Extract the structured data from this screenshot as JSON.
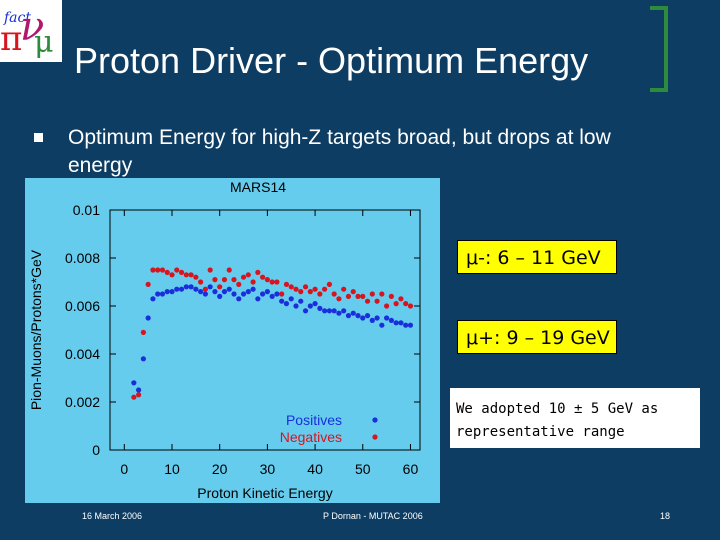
{
  "slide": {
    "title": "Proton Driver - Optimum Energy",
    "bullet": "Optimum Energy for high-Z targets broad, but drops at low energy",
    "logo_text": "fact",
    "label_muminus": "μ-: 6 – 11 GeV",
    "label_muplus": "μ+: 9 – 19 GeV",
    "note": "We adopted 10 ± 5 GeV as representative range",
    "footer_date": "16 March 2006",
    "footer_author": "P Dornan - MUTAC 2006",
    "page_number": "18"
  },
  "colors": {
    "background": "#0e3d63",
    "accent_green": "#2e8b3c",
    "plot_bg": "#66ccee",
    "positives": "#1a2edc",
    "negatives": "#d8141e",
    "label_box": "#ffff00"
  },
  "chart_data": {
    "type": "scatter",
    "title": "MARS14",
    "xlabel": "Proton Kinetic Energy",
    "ylabel": "Pion-Muons/Protons*GeV",
    "xlim": [
      -3,
      62
    ],
    "ylim": [
      0,
      0.01
    ],
    "x_ticks": [
      0,
      10,
      20,
      30,
      40,
      50,
      60
    ],
    "y_ticks": [
      0,
      0.002,
      0.004,
      0.006,
      0.008,
      0.01
    ],
    "y_tick_labels": [
      "0",
      "0.002",
      "0.004",
      "0.006",
      "0.008",
      "0.01"
    ],
    "series": [
      {
        "name": "Positives",
        "color": "#1a2edc",
        "x": [
          2,
          3,
          4,
          5,
          6,
          7,
          8,
          9,
          10,
          11,
          12,
          13,
          14,
          15,
          16,
          17,
          18,
          19,
          20,
          21,
          22,
          23,
          24,
          25,
          26,
          27,
          28,
          29,
          30,
          31,
          32,
          33,
          34,
          35,
          36,
          37,
          38,
          39,
          40,
          41,
          42,
          43,
          44,
          45,
          46,
          47,
          48,
          49,
          50,
          51,
          52,
          53,
          54,
          55,
          56,
          57,
          58,
          59,
          60
        ],
        "y": [
          0.0028,
          0.0025,
          0.0038,
          0.0055,
          0.0063,
          0.0065,
          0.0065,
          0.0066,
          0.0066,
          0.0067,
          0.0067,
          0.0068,
          0.0068,
          0.0067,
          0.0066,
          0.0065,
          0.0068,
          0.0066,
          0.0064,
          0.0066,
          0.0067,
          0.0065,
          0.0063,
          0.0065,
          0.0066,
          0.0067,
          0.0063,
          0.0065,
          0.0066,
          0.0064,
          0.0065,
          0.0062,
          0.0061,
          0.0063,
          0.006,
          0.0062,
          0.0058,
          0.006,
          0.0061,
          0.0059,
          0.0058,
          0.0058,
          0.0058,
          0.0057,
          0.0058,
          0.0056,
          0.0057,
          0.0056,
          0.0055,
          0.0056,
          0.0054,
          0.0055,
          0.0052,
          0.0055,
          0.0054,
          0.0053,
          0.0053,
          0.0052,
          0.0052
        ]
      },
      {
        "name": "Negatives",
        "color": "#d8141e",
        "x": [
          2,
          3,
          4,
          5,
          6,
          7,
          8,
          9,
          10,
          11,
          12,
          13,
          14,
          15,
          16,
          17,
          18,
          19,
          20,
          21,
          22,
          23,
          24,
          25,
          26,
          27,
          28,
          29,
          30,
          31,
          32,
          33,
          34,
          35,
          36,
          37,
          38,
          39,
          40,
          41,
          42,
          43,
          44,
          45,
          46,
          47,
          48,
          49,
          50,
          51,
          52,
          53,
          54,
          55,
          56,
          57,
          58,
          59,
          60
        ],
        "y": [
          0.0022,
          0.0023,
          0.0049,
          0.0069,
          0.0075,
          0.0075,
          0.0075,
          0.0074,
          0.0073,
          0.0075,
          0.0074,
          0.0073,
          0.0073,
          0.0072,
          0.007,
          0.0067,
          0.0075,
          0.0071,
          0.0068,
          0.0071,
          0.0075,
          0.0071,
          0.0069,
          0.0072,
          0.0073,
          0.007,
          0.0074,
          0.0072,
          0.0071,
          0.007,
          0.007,
          0.0065,
          0.0069,
          0.0068,
          0.0067,
          0.0066,
          0.0068,
          0.0066,
          0.0067,
          0.0065,
          0.0067,
          0.0069,
          0.0065,
          0.0063,
          0.0067,
          0.0064,
          0.0066,
          0.0064,
          0.0064,
          0.0062,
          0.0065,
          0.0062,
          0.0065,
          0.006,
          0.0064,
          0.0061,
          0.0063,
          0.0061,
          0.006
        ]
      }
    ]
  }
}
